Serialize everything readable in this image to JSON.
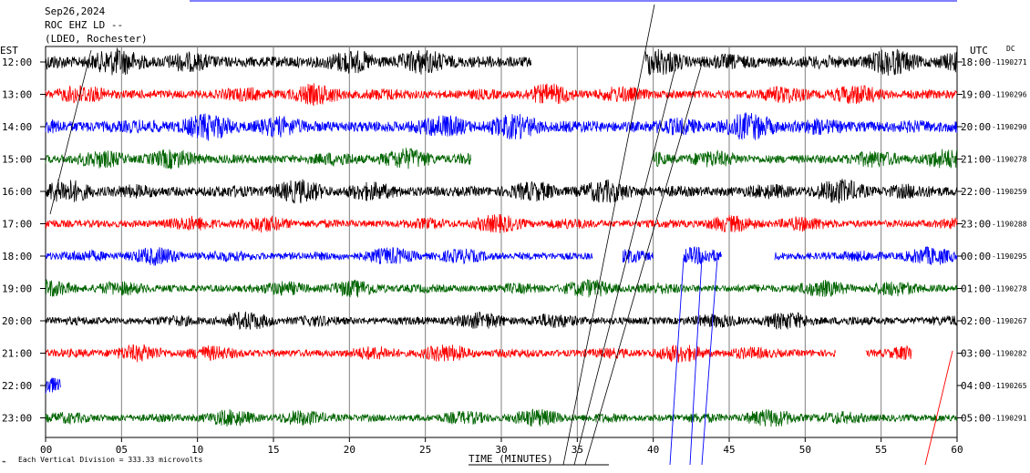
{
  "header": {
    "date": "Sep26,2024",
    "station": "ROC EHZ LD --",
    "network": "(LDEO, Rochester)"
  },
  "left_tz": "EST",
  "right_tz": "UTC",
  "dc_label": "DC",
  "footer": {
    "scale_note": "Each Vertical Division =  333.33 microvolts",
    "xaxis_title": "TIME (MINUTES)"
  },
  "chart_data": {
    "type": "line",
    "xlabel": "TIME (MINUTES)",
    "xlim": [
      0,
      60
    ],
    "x_ticks": [
      "00",
      "05",
      "10",
      "15",
      "20",
      "25",
      "30",
      "35",
      "40",
      "45",
      "50",
      "55",
      "60"
    ],
    "rows": [
      {
        "left": "12:00",
        "right": "18:00",
        "dc": "-1190271",
        "color": "#000000",
        "segments": [
          [
            0,
            32
          ],
          [
            39.5,
            60
          ]
        ],
        "amp": 0.45
      },
      {
        "left": "13:00",
        "right": "19:00",
        "dc": "-1190296",
        "color": "#ff0000",
        "segments": [
          [
            0,
            60
          ]
        ],
        "amp": 0.35
      },
      {
        "left": "14:00",
        "right": "20:00",
        "dc": "-1190290",
        "color": "#0000ff",
        "segments": [
          [
            0,
            60
          ]
        ],
        "amp": 0.45
      },
      {
        "left": "15:00",
        "right": "21:00",
        "dc": "-1190278",
        "color": "#006400",
        "segments": [
          [
            0,
            28
          ],
          [
            40,
            60
          ]
        ],
        "amp": 0.35
      },
      {
        "left": "16:00",
        "right": "22:00",
        "dc": "-1190259",
        "color": "#000000",
        "segments": [
          [
            0,
            60
          ]
        ],
        "amp": 0.4
      },
      {
        "left": "17:00",
        "right": "23:00",
        "dc": "-1190288",
        "color": "#ff0000",
        "segments": [
          [
            0,
            60
          ]
        ],
        "amp": 0.3
      },
      {
        "left": "18:00",
        "right": "00:00",
        "dc": "-1190295",
        "color": "#0000ff",
        "segments": [
          [
            0,
            36
          ],
          [
            38,
            40
          ],
          [
            42,
            44.5
          ],
          [
            48,
            60
          ]
        ],
        "amp": 0.3
      },
      {
        "left": "19:00",
        "right": "01:00",
        "dc": "-1190278",
        "color": "#006400",
        "segments": [
          [
            0,
            60
          ]
        ],
        "amp": 0.3
      },
      {
        "left": "20:00",
        "right": "02:00",
        "dc": "-1190267",
        "color": "#000000",
        "segments": [
          [
            0,
            60
          ]
        ],
        "amp": 0.3
      },
      {
        "left": "21:00",
        "right": "03:00",
        "dc": "-1190282",
        "color": "#ff0000",
        "segments": [
          [
            0,
            52
          ],
          [
            54,
            57
          ],
          [
            60,
            60
          ]
        ],
        "amp": 0.3
      },
      {
        "left": "22:00",
        "right": "04:00",
        "dc": "-1190265",
        "color": "#0000ff",
        "segments": [
          [
            0,
            1
          ]
        ],
        "amp": 0.5
      },
      {
        "left": "23:00",
        "right": "05:00",
        "dc": "-1190291",
        "color": "#006400",
        "segments": [
          [
            0,
            60
          ]
        ],
        "amp": 0.3
      }
    ]
  }
}
